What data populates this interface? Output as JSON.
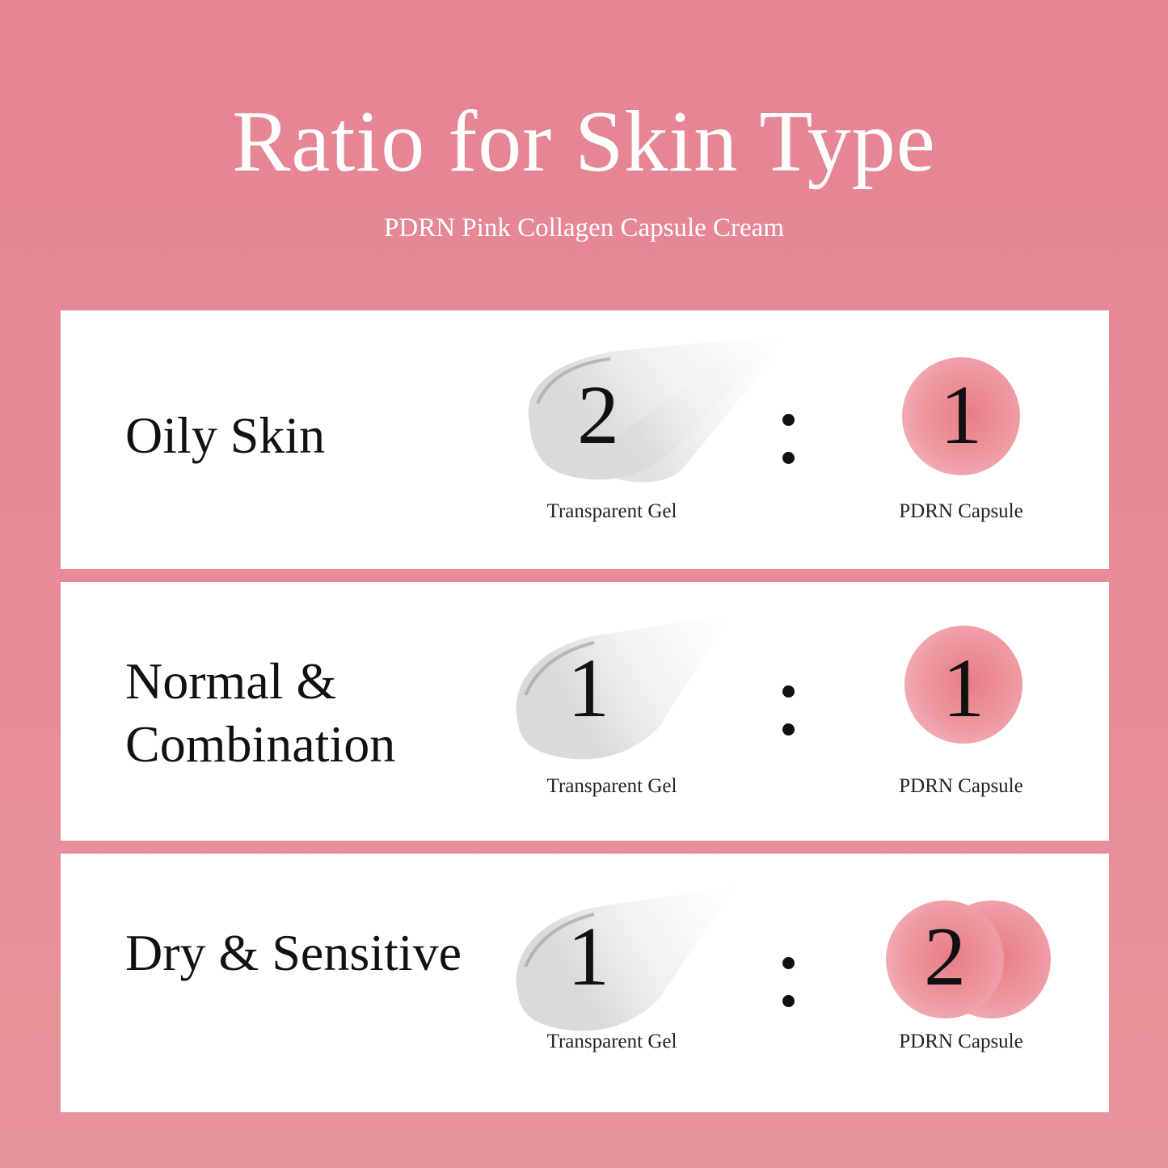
{
  "header": {
    "title": "Ratio for Skin Type",
    "subtitle": "PDRN Pink Collagen Capsule Cream"
  },
  "colors": {
    "background": "#e68494",
    "card": "#ffffff",
    "capsule": "#e87d86"
  },
  "rows": [
    {
      "skin_type": "Oily Skin",
      "gel_ratio": "2",
      "capsule_ratio": "1",
      "gel_caption": "Transparent Gel",
      "capsule_caption": "PDRN Capsule"
    },
    {
      "skin_type": "Normal & Combination",
      "gel_ratio": "1",
      "capsule_ratio": "1",
      "gel_caption": "Transparent Gel",
      "capsule_caption": "PDRN Capsule"
    },
    {
      "skin_type": "Dry & Sensitive",
      "gel_ratio": "1",
      "capsule_ratio": "2",
      "gel_caption": "Transparent Gel",
      "capsule_caption": "PDRN Capsule"
    }
  ]
}
